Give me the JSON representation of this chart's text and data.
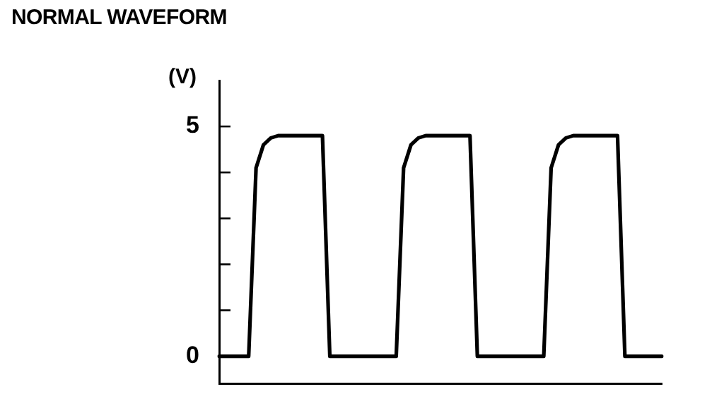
{
  "chart_data": {
    "type": "line",
    "title": "NORMAL WAVEFORM",
    "ylabel": "(V)",
    "categories": [
      null,
      null,
      null,
      null,
      null,
      null,
      null,
      null,
      null,
      null,
      null,
      null,
      null,
      null,
      null,
      null,
      null,
      null,
      null,
      null,
      null,
      null,
      null,
      null,
      null,
      null,
      null,
      null,
      null,
      null,
      null,
      null,
      null,
      null,
      null,
      null,
      null,
      null,
      null,
      null,
      null,
      null,
      null,
      null,
      null,
      null,
      null,
      null,
      null,
      null,
      null,
      null,
      null,
      null,
      null,
      null,
      null,
      null,
      null,
      null,
      null
    ],
    "series": [
      {
        "color": "#000000",
        "values": [
          0,
          0,
          0,
          0,
          0,
          4.1,
          4.6,
          4.75,
          4.8,
          4.8,
          4.8,
          4.8,
          4.8,
          4.8,
          4.8,
          0,
          0,
          0,
          0,
          0,
          0,
          0,
          0,
          0,
          0,
          4.1,
          4.6,
          4.75,
          4.8,
          4.8,
          4.8,
          4.8,
          4.8,
          4.8,
          4.8,
          0,
          0,
          0,
          0,
          0,
          0,
          0,
          0,
          0,
          0,
          4.1,
          4.6,
          4.75,
          4.8,
          4.8,
          4.8,
          4.8,
          4.8,
          4.8,
          4.8,
          0,
          0,
          0,
          0,
          0,
          0
        ]
      }
    ],
    "ylim": [
      -0.6,
      6
    ],
    "yticks": [
      0,
      {
        "value": 1,
        "label": null
      },
      {
        "value": 2,
        "label": null
      },
      {
        "value": 3,
        "label": null
      },
      {
        "value": 4,
        "label": null
      },
      5
    ],
    "grid": false,
    "tick_labels": "y",
    "marker": "none",
    "line_style": "solid"
  }
}
